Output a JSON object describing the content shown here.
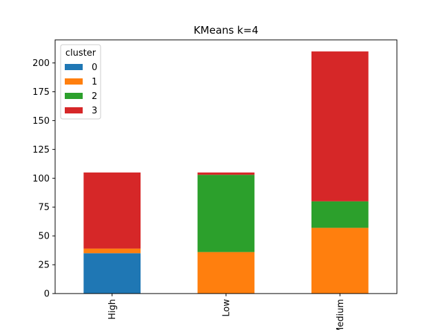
{
  "chart_data": {
    "type": "bar",
    "stacked": true,
    "title": "KMeans k=4",
    "xlabel": "",
    "ylabel": "",
    "categories": [
      "High",
      "Low",
      "Medium"
    ],
    "ylim": [
      0,
      220
    ],
    "yticks": [
      0,
      25,
      50,
      75,
      100,
      125,
      150,
      175,
      200
    ],
    "grid": false,
    "legend": {
      "title": "cluster",
      "position": "top-left"
    },
    "series": [
      {
        "name": "0",
        "color": "#1f77b4",
        "values": [
          35,
          0,
          0
        ]
      },
      {
        "name": "1",
        "color": "#ff7f0e",
        "values": [
          4,
          36,
          57
        ]
      },
      {
        "name": "2",
        "color": "#2ca02c",
        "values": [
          0,
          67,
          23
        ]
      },
      {
        "name": "3",
        "color": "#d62728",
        "values": [
          66,
          2,
          130
        ]
      }
    ]
  }
}
